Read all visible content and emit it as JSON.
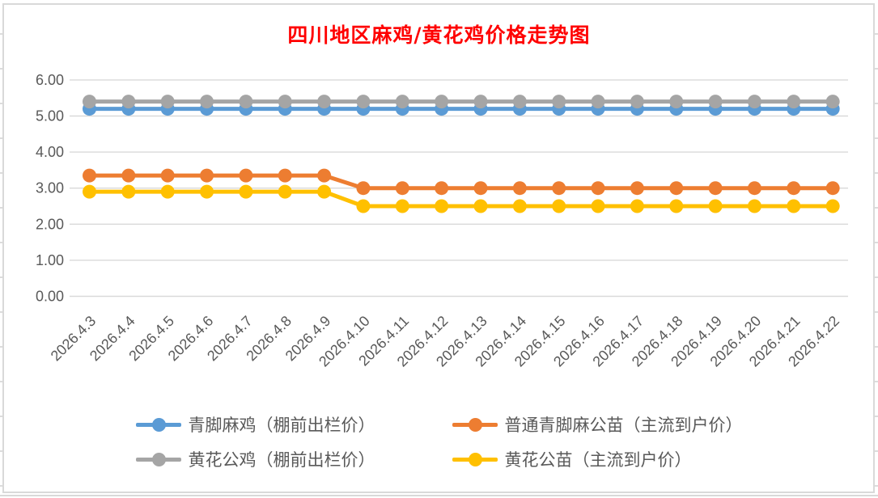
{
  "title": {
    "text": "四川地区麻鸡/黄花鸡价格走势图",
    "color": "#FF0000"
  },
  "chart_data": {
    "type": "line",
    "x": [
      "2026.4.3",
      "2026.4.4",
      "2026.4.5",
      "2026.4.6",
      "2026.4.7",
      "2026.4.8",
      "2026.4.9",
      "2026.4.10",
      "2026.4.11",
      "2026.4.12",
      "2026.4.13",
      "2026.4.14",
      "2026.4.15",
      "2026.4.16",
      "2026.4.17",
      "2026.4.18",
      "2026.4.19",
      "2026.4.20",
      "2026.4.21",
      "2026.4.22"
    ],
    "series": [
      {
        "name": "青脚麻鸡（棚前出栏价）",
        "color": "#5B9BD5",
        "values": [
          5.2,
          5.2,
          5.2,
          5.2,
          5.2,
          5.2,
          5.2,
          5.2,
          5.2,
          5.2,
          5.2,
          5.2,
          5.2,
          5.2,
          5.2,
          5.2,
          5.2,
          5.2,
          5.2,
          5.2
        ]
      },
      {
        "name": "普通青脚麻公苗（主流到户价）",
        "color": "#ED7D31",
        "values": [
          3.35,
          3.35,
          3.35,
          3.35,
          3.35,
          3.35,
          3.35,
          3.0,
          3.0,
          3.0,
          3.0,
          3.0,
          3.0,
          3.0,
          3.0,
          3.0,
          3.0,
          3.0,
          3.0,
          3.0
        ]
      },
      {
        "name": "黄花公鸡（棚前出栏价）",
        "color": "#A5A5A5",
        "values": [
          5.4,
          5.4,
          5.4,
          5.4,
          5.4,
          5.4,
          5.4,
          5.4,
          5.4,
          5.4,
          5.4,
          5.4,
          5.4,
          5.4,
          5.4,
          5.4,
          5.4,
          5.4,
          5.4,
          5.4
        ]
      },
      {
        "name": "黄花公苗（主流到户价）",
        "color": "#FFC000",
        "values": [
          2.9,
          2.9,
          2.9,
          2.9,
          2.9,
          2.9,
          2.9,
          2.5,
          2.5,
          2.5,
          2.5,
          2.5,
          2.5,
          2.5,
          2.5,
          2.5,
          2.5,
          2.5,
          2.5,
          2.5
        ]
      }
    ],
    "ylim": [
      0,
      6
    ],
    "y_ticks": [
      "0.00",
      "1.00",
      "2.00",
      "3.00",
      "4.00",
      "5.00",
      "6.00"
    ],
    "grid": true,
    "legend_position": "bottom",
    "tick_color": "#595959",
    "grid_color": "#D9D9D9"
  }
}
